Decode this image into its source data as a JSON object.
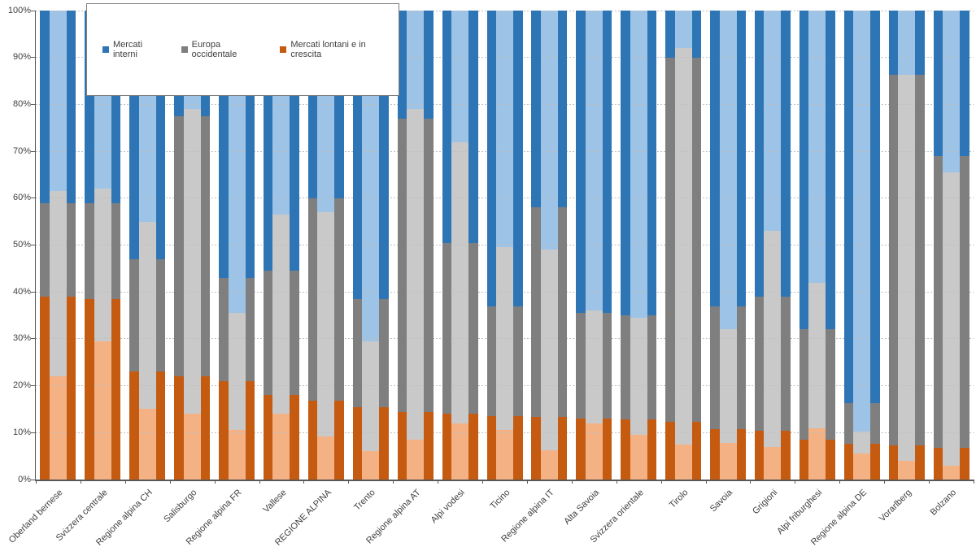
{
  "chart_data": {
    "type": "bar",
    "subtype": "100%-stacked-columns-with-inner-overlay-bars",
    "title": "",
    "xlabel": "",
    "ylabel": "",
    "ylim": [
      0,
      100
    ],
    "y_ticks": [
      "0%",
      "10%",
      "20%",
      "30%",
      "40%",
      "50%",
      "60%",
      "70%",
      "80%",
      "90%",
      "100%"
    ],
    "grid": true,
    "legend_position": "top-left-inset",
    "colors": {
      "mercati_interni_dark": "#2E75B6",
      "mercati_interni_light": "#9DC3E6",
      "europa_occidentale_dark": "#7F7F7F",
      "europa_occidentale_light": "#C9C9C9",
      "mercati_lontani_dark": "#C55A11",
      "mercati_lontani_light": "#F4B183",
      "axis": "#595959",
      "gridline": "#BFBFBF",
      "label": "#404040"
    },
    "categories": [
      "Oberland bernese",
      "Svizzera centrale",
      "Regione alpina CH",
      "Salisburgo",
      "Regione alpina FR",
      "Vallese",
      "REGIONE ALPINA",
      "Trento",
      "Regione alpina AT",
      "Alpi vodesi",
      "Ticino",
      "Regione alpina IT",
      "Alta Savoia",
      "Svizzera orientale",
      "Tirolo",
      "Savoia",
      "Grigioni",
      "Alpi friburghesi",
      "Regione alpina DE",
      "Vorarlberg",
      "Bolzano"
    ],
    "stack_order_bottom_to_top": [
      "Mercati lontani e in crescita",
      "Europa occidentale",
      "Mercati interni"
    ],
    "series": [
      {
        "name": "Mercati lontani e in crescita (outer dark bar)",
        "variant": "dark",
        "key": "mercati_lontani",
        "values": [
          39,
          38.5,
          23,
          22,
          21,
          18,
          16.8,
          15.5,
          14.3,
          14,
          13.5,
          13.3,
          13,
          12.9,
          12.3,
          10.8,
          10.4,
          8.5,
          7.7,
          7.3,
          6.8
        ]
      },
      {
        "name": "Europa occidentale (outer dark bar)",
        "variant": "dark",
        "key": "europa_occidentale",
        "values": [
          20,
          20.5,
          24,
          55.5,
          22,
          26.5,
          43.2,
          23,
          62.7,
          36.5,
          23.5,
          44.7,
          22.5,
          22.1,
          77.7,
          26.2,
          28.6,
          23.5,
          8.6,
          79,
          62.2
        ]
      },
      {
        "name": "Mercati interni (outer dark bar)",
        "variant": "dark",
        "key": "mercati_interni",
        "values": [
          41,
          41,
          53,
          22.5,
          57,
          55.5,
          40,
          61.5,
          23,
          49.5,
          63,
          42,
          64.5,
          65,
          10,
          63,
          61,
          68,
          83.7,
          13.7,
          31
        ]
      },
      {
        "name": "Mercati lontani e in crescita (inner light bar)",
        "variant": "light",
        "key": "mercati_lontani",
        "values": [
          22,
          29.5,
          15,
          14,
          10.5,
          14,
          9.2,
          6,
          8.5,
          12,
          10.5,
          6.3,
          12,
          9.5,
          7.5,
          7.8,
          7,
          11,
          5.5,
          4,
          3
        ]
      },
      {
        "name": "Europa occidentale (inner light bar)",
        "variant": "light",
        "key": "europa_occidentale",
        "values": [
          39.5,
          32.5,
          40,
          65,
          25,
          42.5,
          47.8,
          23.5,
          70.5,
          60,
          39,
          42.7,
          24,
          25,
          84.5,
          24.2,
          46,
          31,
          4.7,
          82.3,
          62.5
        ]
      },
      {
        "name": "Mercati interni (inner light bar)",
        "variant": "light",
        "key": "mercati_interni",
        "values": [
          38.5,
          38,
          45,
          21,
          64.5,
          43.5,
          43,
          70.5,
          21,
          28,
          50.5,
          51,
          64,
          65.5,
          8,
          68,
          47,
          58,
          89.8,
          13.7,
          34.5
        ]
      }
    ]
  },
  "legend": {
    "items": [
      {
        "label": "Mercati interni",
        "color": "#2E75B6"
      },
      {
        "label": "Europa occidentale",
        "color": "#7F7F7F"
      },
      {
        "label": "Mercati lontani e in crescita",
        "color": "#C55A11"
      }
    ]
  }
}
